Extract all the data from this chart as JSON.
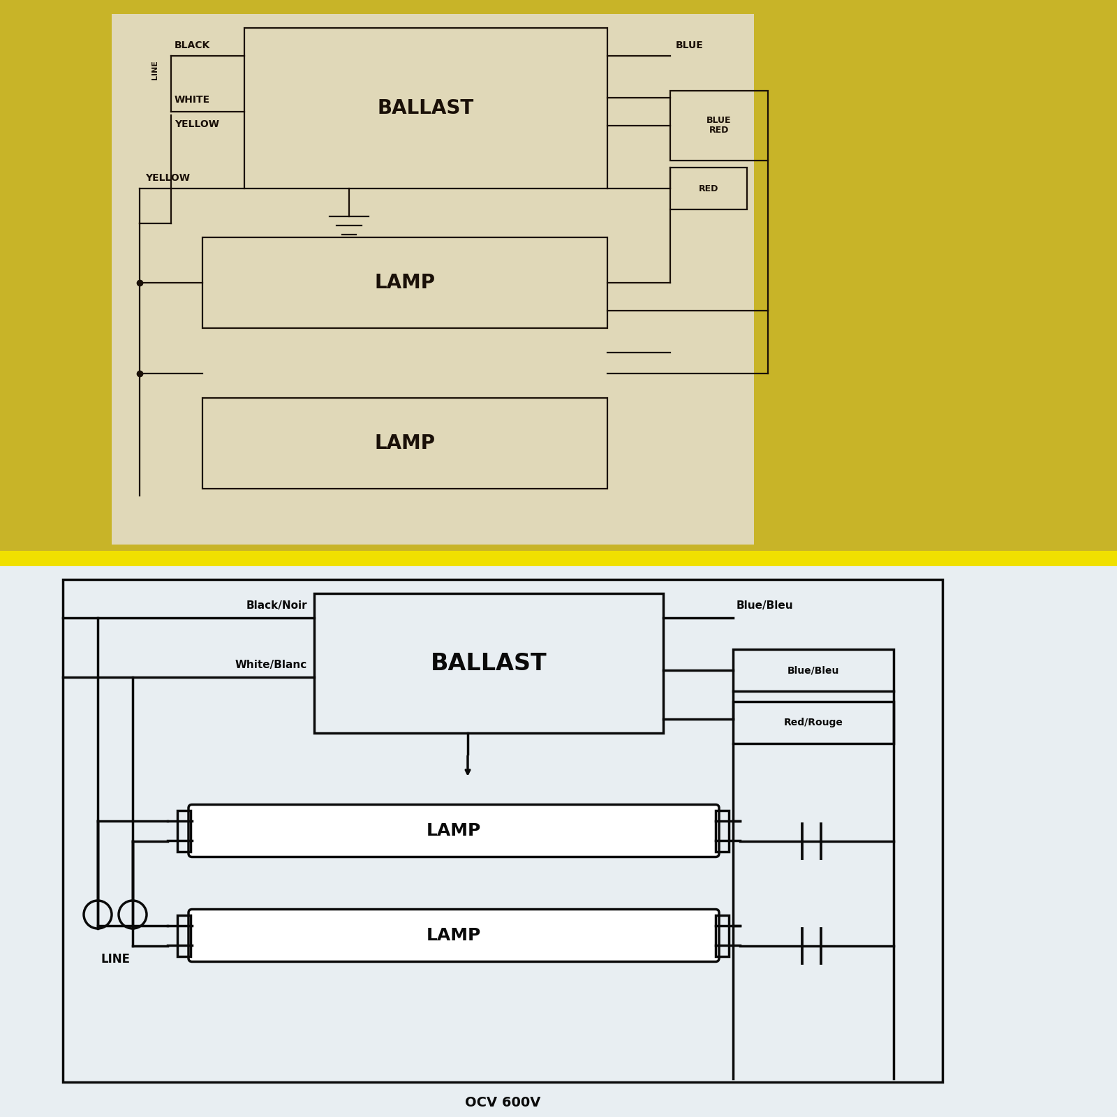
{
  "top_bg_color": "#c8b428",
  "top_diagram_bg": "#e0d8b8",
  "bottom_bg_color": "#e8eef2",
  "line_color_top": "#1a1008",
  "line_color_bottom": "#0a0a0a",
  "separator_color": "#f0e000",
  "top_ballast_label": "BALLAST",
  "top_lamp1_label": "LAMP",
  "top_lamp2_label": "LAMP",
  "bottom_ballast_label": "BALLAST",
  "bottom_lamp1_label": "LAMP",
  "bottom_lamp2_label": "LAMP",
  "top_left_labels": [
    "BLACK",
    "WHITE\nYELLOW",
    "YELLOW"
  ],
  "top_right_labels": [
    "BLUE",
    "BLUE\nRED",
    "RED"
  ],
  "top_line_label": "LINE",
  "bottom_left_labels": [
    "Black/Noir",
    "White/Blanc"
  ],
  "bottom_right_labels": [
    "Blue/Bleu",
    "Blue/Bleu",
    "Red/Rouge"
  ],
  "bottom_line_label": "LINE",
  "bottom_voltage_label": "OCV 600V"
}
